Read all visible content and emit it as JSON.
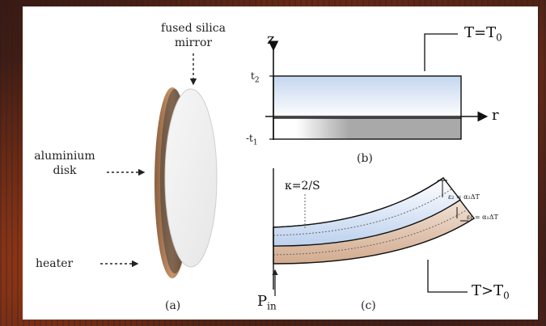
{
  "labels": {
    "fused_silica_line1": "fused silica",
    "fused_silica_line2": "mirror",
    "aluminium_line1": "aluminium",
    "aluminium_line2": "disk",
    "heater": "heater",
    "panel_a": "(a)",
    "panel_b": "(b)",
    "panel_c": "(c)"
  },
  "math": {
    "z_axis": "z",
    "r_axis": "r",
    "t2": "t",
    "t2_sub": "2",
    "neg_t1": "-t",
    "neg_t1_sub": "1",
    "T_equal": "T=T",
    "T_equal_sub": "0",
    "T_greater": "T>T",
    "T_greater_sub": "0",
    "kappa": "κ=2/S",
    "eps2": "ε₂ = α₂ΔT",
    "eps1": "ε₁ = α₁ΔT",
    "P": "P",
    "P_sub": "in"
  },
  "colors": {
    "background": "#3a1a12",
    "panel": "#ffffff",
    "silica_top": "#c9d9ee",
    "aluminium": "#a8a8a8",
    "aluminium_bent": "#d6b39a"
  }
}
